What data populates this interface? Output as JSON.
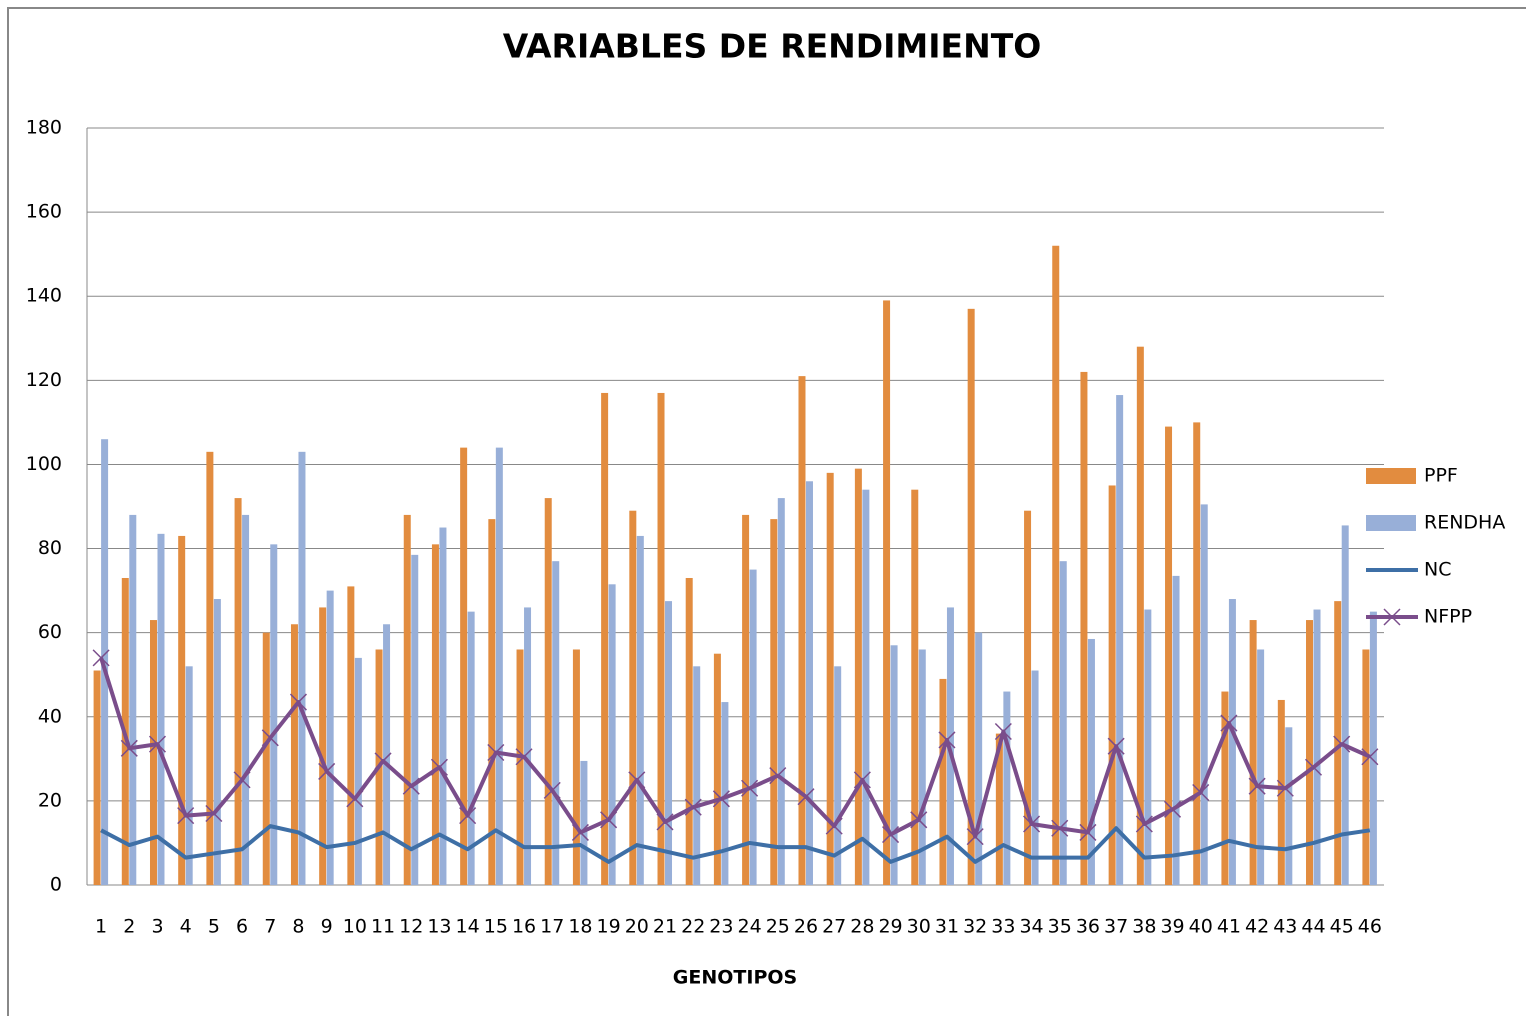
{
  "chart_data": {
    "type": "bar_line",
    "title": "VARIABLES DE RENDIMIENTO",
    "x_label": "GENOTIPOS",
    "categories": [
      "1",
      "2",
      "3",
      "4",
      "5",
      "6",
      "7",
      "8",
      "9",
      "10",
      "11",
      "12",
      "13",
      "14",
      "15",
      "16",
      "17",
      "18",
      "19",
      "20",
      "21",
      "22",
      "23",
      "24",
      "25",
      "26",
      "27",
      "28",
      "29",
      "30",
      "31",
      "32",
      "33",
      "34",
      "35",
      "36",
      "37",
      "38",
      "39",
      "40",
      "41",
      "42",
      "43",
      "44",
      "45",
      "46"
    ],
    "series": [
      {
        "name": "PPF",
        "kind": "bar",
        "color": "#e28c3f",
        "values": [
          51,
          73,
          63,
          83,
          103,
          92,
          60,
          62,
          66,
          71,
          56,
          88,
          81,
          104,
          87,
          56,
          92,
          56,
          117,
          89,
          117,
          73,
          55,
          88,
          87,
          121,
          98,
          99,
          139,
          94,
          49,
          137,
          36,
          89,
          152,
          122,
          95,
          128,
          109,
          110,
          46,
          63,
          44,
          63,
          67.5,
          56
        ]
      },
      {
        "name": "RENDHA",
        "kind": "bar",
        "color": "#98afd8",
        "values": [
          106,
          88,
          83.5,
          52,
          68,
          88,
          81,
          103,
          70,
          54,
          62,
          78.5,
          85,
          65,
          104,
          66,
          77,
          29.5,
          71.5,
          83,
          67.5,
          52,
          43.5,
          75,
          92,
          96,
          52,
          94,
          57,
          56,
          66,
          60,
          46,
          51,
          77,
          58.5,
          116.5,
          65.5,
          73.5,
          90.5,
          68,
          56,
          37.5,
          65.5,
          85.5,
          65
        ]
      },
      {
        "name": "NC",
        "kind": "line",
        "color": "#3e6fa6",
        "values": [
          13,
          9.5,
          11.5,
          6.5,
          7.5,
          8.5,
          14,
          12.5,
          9,
          10,
          12.5,
          8.5,
          12,
          8.5,
          13,
          9,
          9,
          9.5,
          5.5,
          9.5,
          8,
          6.5,
          8,
          10,
          9,
          9,
          7,
          11,
          5.5,
          8,
          11.5,
          5.5,
          9.5,
          6.5,
          6.5,
          6.5,
          13.5,
          6.5,
          7,
          8,
          10.5,
          9,
          8.5,
          10,
          12,
          13
        ]
      },
      {
        "name": "NFPP",
        "kind": "line",
        "marker": "x",
        "color": "#7a4d8b",
        "values": [
          54,
          32.5,
          33.5,
          16.5,
          17,
          25,
          35,
          43.5,
          27,
          20.5,
          29.5,
          23.5,
          28,
          16.5,
          31.5,
          30.5,
          22.5,
          12.5,
          15.5,
          25,
          15,
          18.5,
          20.5,
          23,
          26,
          21,
          14,
          25,
          12,
          15.5,
          34.5,
          11.5,
          36.5,
          14.5,
          13.5,
          12.5,
          33,
          14.5,
          18,
          22,
          38.5,
          23.5,
          23,
          28,
          33.5,
          30.5
        ]
      }
    ],
    "ylim": [
      0,
      180
    ],
    "yticks": [
      0,
      20,
      40,
      60,
      80,
      100,
      120,
      140,
      160,
      180
    ],
    "grid": true,
    "legend": "right"
  }
}
